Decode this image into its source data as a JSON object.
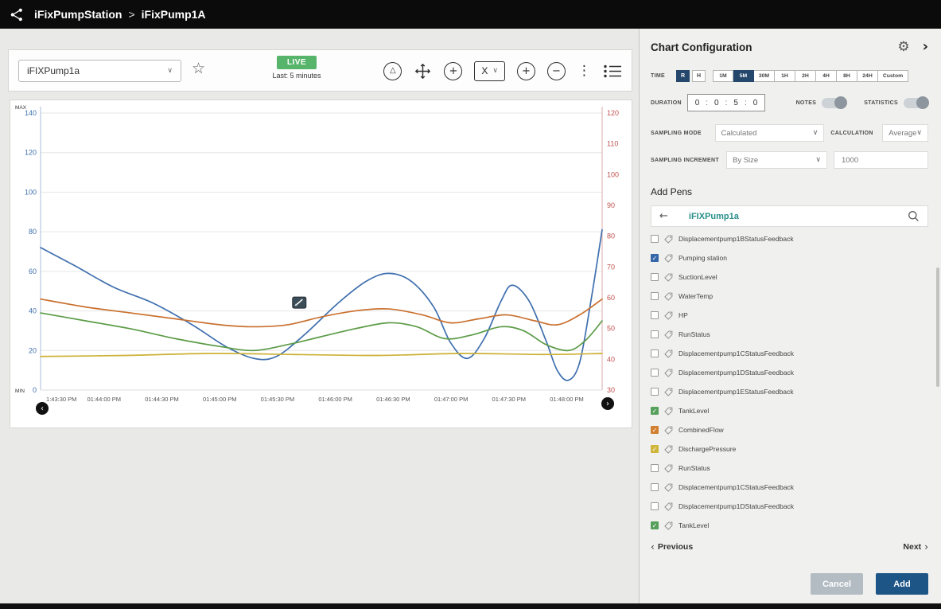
{
  "topbar": {
    "breadcrumb": {
      "parent": "iFixPumpStation",
      "separator": ">",
      "current": "iFixPump1A"
    }
  },
  "toolbar": {
    "tag_selector": "iFIXPump1a",
    "live_badge": "LIVE",
    "live_subtitle": "Last: 5 minutes",
    "axis_selector": "X"
  },
  "icons": {
    "favorite": "☆",
    "alarm": "△",
    "zoom_box": "+",
    "zoom_in": "+",
    "zoom_out": "−",
    "more_options": "⋮",
    "gear": "⚙",
    "collapse": "›",
    "back": "←",
    "dropdown_chevron": "∨",
    "chevron_left": "‹",
    "chevron_right": "›"
  },
  "chart_data": {
    "type": "line",
    "title": "",
    "grid": true,
    "x_tick_labels": [
      "1:43:30 PM",
      "01:44:00 PM",
      "01:44:30 PM",
      "01:45:00 PM",
      "01:45:30 PM",
      "01:46:00 PM",
      "01:46:30 PM",
      "01:47:00 PM",
      "01:47:30 PM",
      "01:48:00 PM"
    ],
    "left_axis": {
      "max_label": "MAX",
      "min_label": "MIN",
      "range": [
        0,
        140
      ],
      "ticks": [
        0,
        20,
        40,
        60,
        80,
        100,
        120,
        140
      ],
      "color": "#3f6fae"
    },
    "right_axis": {
      "range": [
        30,
        120
      ],
      "ticks": [
        30,
        40,
        50,
        60,
        70,
        80,
        90,
        100,
        110,
        120
      ],
      "color": "#c0504d"
    },
    "cursor_marker": {
      "x_percent": 46,
      "value": 41
    },
    "series": [
      {
        "name": "Pumping station",
        "color": "#3f6fae",
        "points": [
          [
            0,
            72
          ],
          [
            6,
            63
          ],
          [
            13,
            52
          ],
          [
            20,
            44
          ],
          [
            27,
            33
          ],
          [
            33,
            22
          ],
          [
            38,
            16
          ],
          [
            42,
            17
          ],
          [
            47,
            28
          ],
          [
            53,
            44
          ],
          [
            58,
            55
          ],
          [
            62,
            59
          ],
          [
            66,
            55
          ],
          [
            70,
            42
          ],
          [
            73,
            24
          ],
          [
            76,
            16
          ],
          [
            79,
            26
          ],
          [
            82,
            45
          ],
          [
            84,
            53
          ],
          [
            87,
            45
          ],
          [
            90,
            25
          ],
          [
            92,
            10
          ],
          [
            94,
            5
          ],
          [
            96,
            14
          ],
          [
            98,
            45
          ],
          [
            100,
            81
          ]
        ]
      },
      {
        "name": "CombinedFlow",
        "color": "#c9702f",
        "points": [
          [
            0,
            46
          ],
          [
            8,
            42
          ],
          [
            16,
            39
          ],
          [
            24,
            36
          ],
          [
            32,
            33
          ],
          [
            38,
            32
          ],
          [
            44,
            33
          ],
          [
            50,
            37
          ],
          [
            56,
            40
          ],
          [
            62,
            41
          ],
          [
            68,
            38
          ],
          [
            73,
            34
          ],
          [
            78,
            36
          ],
          [
            83,
            38
          ],
          [
            88,
            35
          ],
          [
            92,
            33
          ],
          [
            96,
            38
          ],
          [
            100,
            46
          ]
        ]
      },
      {
        "name": "TankLevel",
        "color": "#5b9b46",
        "points": [
          [
            0,
            39
          ],
          [
            8,
            35
          ],
          [
            16,
            31
          ],
          [
            24,
            26
          ],
          [
            32,
            22
          ],
          [
            38,
            20
          ],
          [
            44,
            23
          ],
          [
            50,
            27
          ],
          [
            56,
            31
          ],
          [
            62,
            34
          ],
          [
            67,
            32
          ],
          [
            72,
            26
          ],
          [
            77,
            28
          ],
          [
            82,
            32
          ],
          [
            86,
            30
          ],
          [
            90,
            23
          ],
          [
            94,
            20
          ],
          [
            97,
            25
          ],
          [
            100,
            35
          ]
        ]
      },
      {
        "name": "DischargePressure",
        "color": "#ccb136",
        "points": [
          [
            0,
            17
          ],
          [
            15,
            17.5
          ],
          [
            30,
            18.5
          ],
          [
            45,
            18
          ],
          [
            60,
            17.5
          ],
          [
            75,
            18.5
          ],
          [
            90,
            18
          ],
          [
            100,
            18.5
          ]
        ]
      }
    ]
  },
  "panel": {
    "title": "Chart Configuration",
    "time": {
      "label": "TIME",
      "mode_buttons": [
        {
          "label": "R",
          "selected": true
        },
        {
          "label": "H",
          "selected": false
        }
      ],
      "range_buttons": [
        {
          "label": "1M",
          "selected": false
        },
        {
          "label": "5M",
          "selected": true
        },
        {
          "label": "30M",
          "selected": false
        },
        {
          "label": "1H",
          "selected": false
        },
        {
          "label": "2H",
          "selected": false
        },
        {
          "label": "4H",
          "selected": false
        },
        {
          "label": "8H",
          "selected": false
        },
        {
          "label": "24H",
          "selected": false
        },
        {
          "label": "Custom",
          "selected": false
        }
      ]
    },
    "duration": {
      "label": "DURATION",
      "values": [
        "0",
        "0",
        "5",
        "0"
      ]
    },
    "notes": {
      "label": "NOTES",
      "on": false
    },
    "statistics": {
      "label": "STATISTICS",
      "on": false
    },
    "sampling_mode": {
      "label": "SAMPLING MODE",
      "value": "Calculated"
    },
    "calculation": {
      "label": "CALCULATION",
      "value": "Average"
    },
    "sampling_increment": {
      "label": "SAMPLING INCREMENT",
      "value": "By Size",
      "size_value": "1000"
    },
    "add_pens": {
      "title": "Add Pens",
      "source": "iFIXPump1a",
      "pens": [
        {
          "label": "Displacementpump1BStatusFeedback",
          "checked": false,
          "color": ""
        },
        {
          "label": "Pumping station",
          "checked": true,
          "color": "#3566a8"
        },
        {
          "label": "SuctionLevel",
          "checked": false,
          "color": ""
        },
        {
          "label": "WaterTemp",
          "checked": false,
          "color": ""
        },
        {
          "label": "HP",
          "checked": false,
          "color": ""
        },
        {
          "label": "RunStatus",
          "checked": false,
          "color": ""
        },
        {
          "label": "Displacementpump1CStatusFeedback",
          "checked": false,
          "color": ""
        },
        {
          "label": "Displacementpump1DStatusFeedback",
          "checked": false,
          "color": ""
        },
        {
          "label": "Displacementpump1EStatusFeedback",
          "checked": false,
          "color": ""
        },
        {
          "label": "TankLevel",
          "checked": true,
          "color": "#57a05b"
        },
        {
          "label": "CombinedFlow",
          "checked": true,
          "color": "#d2802f"
        },
        {
          "label": "DischargePressure",
          "checked": true,
          "color": "#cfb63a"
        },
        {
          "label": "RunStatus",
          "checked": false,
          "color": ""
        },
        {
          "label": "Displacementpump1CStatusFeedback",
          "checked": false,
          "color": ""
        },
        {
          "label": "Displacementpump1DStatusFeedback",
          "checked": false,
          "color": ""
        },
        {
          "label": "TankLevel",
          "checked": true,
          "color": "#57a05b"
        }
      ],
      "pagination": {
        "previous": "Previous",
        "next": "Next"
      }
    },
    "actions": {
      "cancel": "Cancel",
      "add": "Add"
    }
  }
}
